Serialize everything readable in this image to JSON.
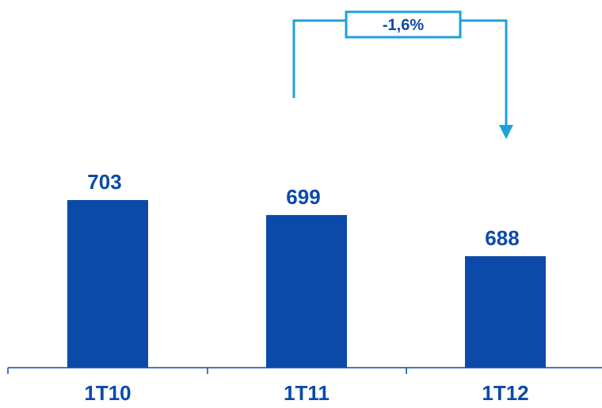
{
  "chart_data": {
    "type": "bar",
    "categories": [
      "1T10",
      "1T11",
      "1T12"
    ],
    "values": [
      703,
      699,
      688
    ],
    "value_labels": [
      "703",
      "699",
      "688"
    ],
    "title": "",
    "xlabel": "",
    "ylabel": "",
    "annotation": {
      "text": "-1,6%",
      "from": "1T11",
      "to": "1T12"
    },
    "grid": false,
    "legend": "none"
  },
  "colors": {
    "bar": "#0B4AA8",
    "text": "#0B4AA8",
    "annotation": "#1EA0DC",
    "axis": "#0B4AA8"
  }
}
